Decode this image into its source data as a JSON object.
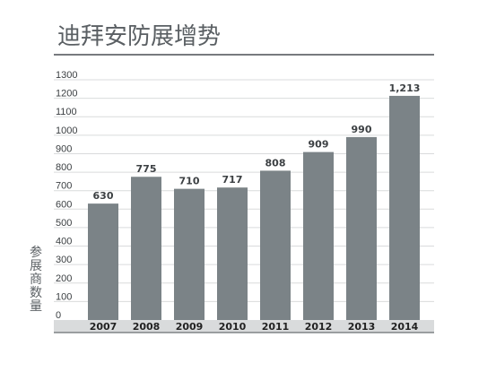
{
  "chart_data": {
    "type": "bar",
    "title": "迪拜安防展增势",
    "ylabel": "参展商数量",
    "xlabel": "",
    "categories": [
      "2007",
      "2008",
      "2009",
      "2010",
      "2011",
      "2012",
      "2013",
      "2014"
    ],
    "values": [
      630,
      775,
      710,
      717,
      808,
      909,
      990,
      1213
    ],
    "data_labels": [
      "630",
      "775",
      "710",
      "717",
      "808",
      "909",
      "990",
      "1,213"
    ],
    "yticks": [
      0,
      100,
      200,
      300,
      400,
      500,
      600,
      700,
      800,
      900,
      1000,
      1100,
      1200,
      1300
    ],
    "ylim": [
      0,
      1300
    ],
    "grid": true,
    "colors": {
      "bar": "#7b8387",
      "grid": "#d9dbdc",
      "title": "#5a5f63",
      "rule": "#4a4f53"
    }
  }
}
